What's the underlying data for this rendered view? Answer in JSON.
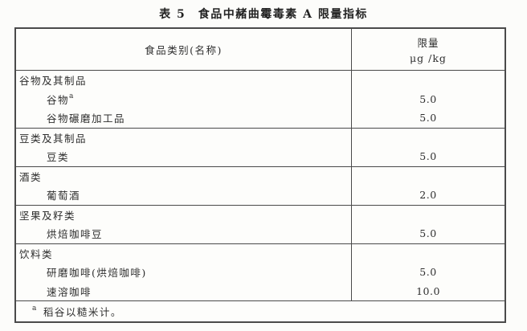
{
  "title": "表 5　食品中赭曲霉毒素 A 限量指标",
  "table": {
    "header": {
      "food_category": "食品类别(名称)",
      "limit_label": "限量",
      "limit_unit": "μg /kg"
    },
    "groups": [
      {
        "rows": [
          {
            "name": "谷物及其制品",
            "sup": "",
            "value": ""
          },
          {
            "name": "谷物",
            "sup": "a",
            "value": "5.0"
          },
          {
            "name": "谷物碾磨加工品",
            "sup": "",
            "value": "5.0"
          }
        ]
      },
      {
        "rows": [
          {
            "name": "豆类及其制品",
            "sup": "",
            "value": ""
          },
          {
            "name": "豆类",
            "sup": "",
            "value": "5.0"
          }
        ]
      },
      {
        "rows": [
          {
            "name": "酒类",
            "sup": "",
            "value": ""
          },
          {
            "name": "葡萄酒",
            "sup": "",
            "value": "2.0"
          }
        ]
      },
      {
        "rows": [
          {
            "name": "坚果及籽类",
            "sup": "",
            "value": ""
          },
          {
            "name": "烘焙咖啡豆",
            "sup": "",
            "value": "5.0"
          }
        ]
      },
      {
        "rows": [
          {
            "name": "饮料类",
            "sup": "",
            "value": ""
          },
          {
            "name": "研磨咖啡(烘焙咖啡)",
            "sup": "",
            "value": "5.0"
          },
          {
            "name": "速溶咖啡",
            "sup": "",
            "value": "10.0"
          }
        ]
      }
    ],
    "footnote": {
      "marker": "a",
      "text": "稻谷以糙米计。"
    }
  },
  "colors": {
    "border": "#4a4a4a",
    "text": "#2e2e2e",
    "background": "#fcfcfa"
  }
}
